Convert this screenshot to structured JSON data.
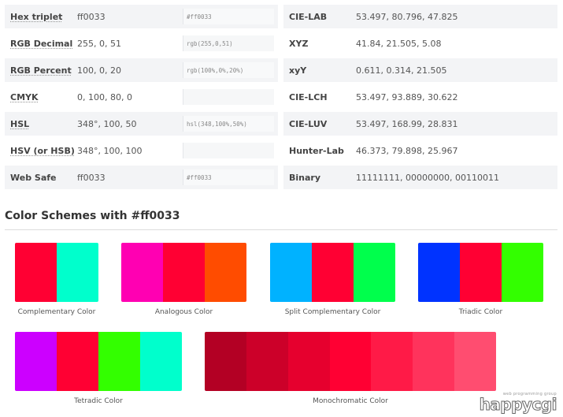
{
  "left_rows": [
    {
      "label": "Hex triplet",
      "abbr": true,
      "value": "ff0033",
      "css": "#ff0033"
    },
    {
      "label": "RGB Decimal",
      "abbr": true,
      "value": "255, 0, 51",
      "css": "rgb(255,0,51)"
    },
    {
      "label": "RGB Percent",
      "abbr": true,
      "value": "100, 0, 20",
      "css": "rgb(100%,0%,20%)"
    },
    {
      "label": "CMYK",
      "abbr": true,
      "value": "0, 100, 80, 0",
      "css": ""
    },
    {
      "label": "HSL",
      "abbr": true,
      "value": "348°, 100, 50",
      "css": "hsl(348,100%,50%)"
    },
    {
      "label": "HSV (or HSB)",
      "abbr": true,
      "value": "348°, 100, 100",
      "css": ""
    },
    {
      "label": "Web Safe",
      "abbr": false,
      "value": "ff0033",
      "css": "#ff0033"
    }
  ],
  "right_rows": [
    {
      "label": "CIE-LAB",
      "value": "53.497, 80.796, 47.825"
    },
    {
      "label": "XYZ",
      "value": "41.84, 21.505, 5.08"
    },
    {
      "label": "xyY",
      "value": "0.611, 0.314, 21.505"
    },
    {
      "label": "CIE-LCH",
      "value": "53.497, 93.889, 30.622"
    },
    {
      "label": "CIE-LUV",
      "value": "53.497, 168.99, 28.831"
    },
    {
      "label": "Hunter-Lab",
      "value": "46.373, 79.898, 25.967"
    },
    {
      "label": "Binary",
      "value": "11111111, 00000000, 00110011"
    }
  ],
  "section_title": "Color Schemes with #ff0033",
  "schemes": [
    {
      "name": "Complementary Color",
      "colors": [
        "#ff0033",
        "#00ffcc"
      ]
    },
    {
      "name": "Analogous Color",
      "colors": [
        "#ff00b2",
        "#ff0033",
        "#ff4c00"
      ]
    },
    {
      "name": "Split Complementary Color",
      "colors": [
        "#00b2ff",
        "#ff0033",
        "#00ff4c"
      ]
    },
    {
      "name": "Triadic Color",
      "colors": [
        "#0033ff",
        "#ff0033",
        "#33ff00"
      ]
    },
    {
      "name": "Tetradic Color",
      "colors": [
        "#cc00ff",
        "#ff0033",
        "#33ff00",
        "#00ffcc"
      ]
    },
    {
      "name": "Monochromatic Color",
      "colors": [
        "#b30024",
        "#cc0029",
        "#e6002e",
        "#ff0033",
        "#ff1a47",
        "#ff335c",
        "#ff4d70"
      ]
    }
  ],
  "watermark": {
    "small": "web programming group",
    "big": "happycgi"
  }
}
